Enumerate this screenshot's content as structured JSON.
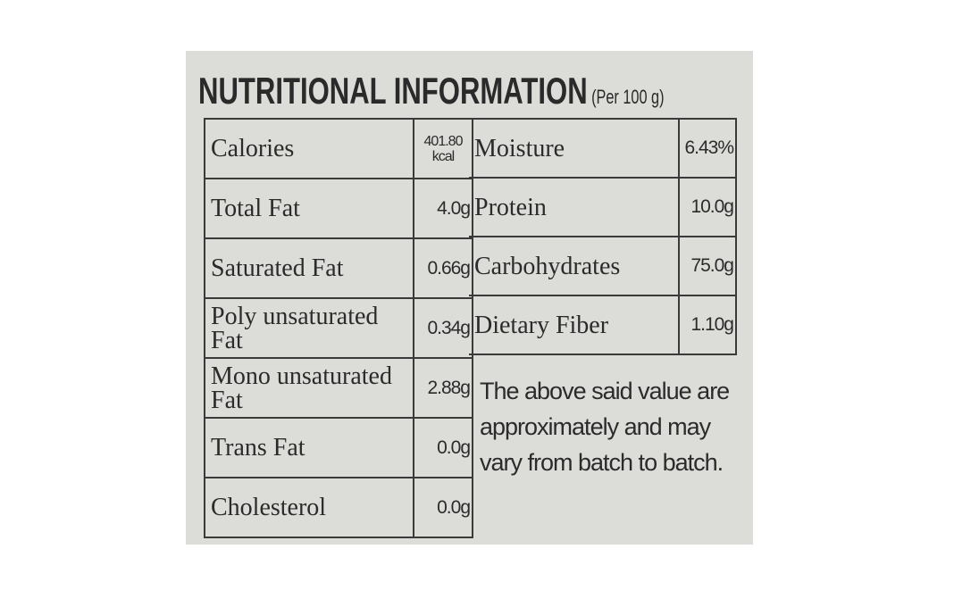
{
  "header": {
    "title": "NUTRITIONAL INFORMATION",
    "subtitle": "(Per 100 g)"
  },
  "left_table": {
    "rows": [
      [
        "Calories",
        "401.80 kcal"
      ],
      [
        "Total Fat",
        "4.0g"
      ],
      [
        "Saturated Fat",
        "0.66g"
      ],
      [
        "Poly unsaturated Fat",
        "0.34g"
      ],
      [
        "Mono unsaturated Fat",
        "2.88g"
      ],
      [
        "Trans Fat",
        "0.0g"
      ],
      [
        "Cholesterol",
        "0.0g"
      ]
    ]
  },
  "right_table": {
    "rows": [
      [
        "Moisture",
        "6.43%"
      ],
      [
        "Protein",
        "10.0g"
      ],
      [
        "Carbohydrates",
        "75.0g"
      ],
      [
        "Dietary Fiber",
        "1.10g"
      ]
    ]
  },
  "note": "The above said value are approximately and may vary from batch to batch."
}
